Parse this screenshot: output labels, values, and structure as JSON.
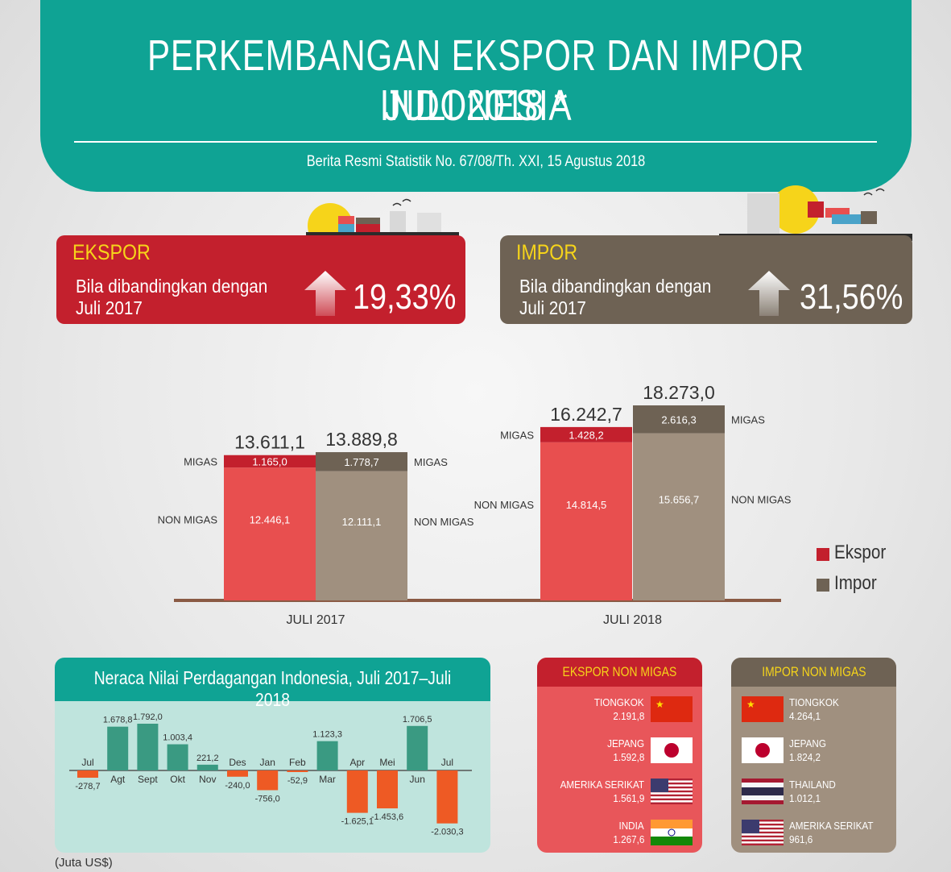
{
  "header": {
    "title_line1": "PERKEMBANGAN EKSPOR DAN IMPOR INDONESIA",
    "title_line2": "JULI 2018 *",
    "source": "Berita Resmi Statistik No. 67/08/Th. XXI, 15 Agustus 2018"
  },
  "growth": {
    "ekspor": {
      "title": "EKSPOR",
      "line1": "Bila dibandingkan dengan",
      "line2": "Juli 2017",
      "value": "19,33%"
    },
    "impor": {
      "title": "IMPOR",
      "line1": "Bila dibandingkan dengan",
      "line2": "Juli 2017",
      "value": "31,56%"
    }
  },
  "colors": {
    "teal": "#0fa394",
    "ekspor_red": "#c3202d",
    "ekspor_bar": "#e84f4f",
    "impor_brown": "#6e6254",
    "impor_bar": "#a0907f",
    "neg_orange": "#ee5a24",
    "pos_green": "#3a9a82",
    "yellow": "#f6d41a"
  },
  "chart_data": [
    {
      "type": "bar",
      "stacked": true,
      "categories": [
        "JULI 2017",
        "JULI 2018"
      ],
      "series": [
        {
          "name": "Ekspor",
          "migas": [
            1165.0,
            1428.2
          ],
          "non_migas": [
            12446.1,
            14814.5
          ],
          "total": [
            13611.1,
            16242.7
          ],
          "migas_labels": [
            "1.165,0",
            "1.428,2"
          ],
          "non_migas_labels": [
            "12.446,1",
            "14.814,5"
          ],
          "total_labels": [
            "13.611,1",
            "16.242,7"
          ]
        },
        {
          "name": "Impor",
          "migas": [
            1778.7,
            2616.3
          ],
          "non_migas": [
            12111.1,
            15656.7
          ],
          "total": [
            13889.8,
            18273.0
          ],
          "migas_labels": [
            "1.778,7",
            "2.616,3"
          ],
          "non_migas_labels": [
            "12.111,1",
            "15.656,7"
          ],
          "total_labels": [
            "13.889,8",
            "18.273,0"
          ]
        }
      ],
      "segment_labels": {
        "migas": "MIGAS",
        "non_migas": "NON MIGAS"
      },
      "legend": [
        "Ekspor",
        "Impor"
      ],
      "legend_position": "right"
    },
    {
      "type": "bar",
      "title": "Neraca Nilai Perdagangan Indonesia, Juli 2017–Juli 2018",
      "categories": [
        "Jul",
        "Agt",
        "Sept",
        "Okt",
        "Nov",
        "Des",
        "Jan",
        "Feb",
        "Mar",
        "Apr",
        "Mei",
        "Jun",
        "Jul"
      ],
      "values": [
        -278.7,
        1678.8,
        1792.0,
        1003.4,
        221.2,
        -240.0,
        -756.0,
        -52.9,
        1123.3,
        -1625.1,
        -1453.6,
        1706.5,
        -2030.3
      ],
      "value_labels": [
        "-278,7",
        "1.678,8",
        "1.792,0",
        "1.003,4",
        "221,2",
        "-240,0",
        "-756,0",
        "-52,9",
        "1.123,3",
        "-1.625,1",
        "-1.453,6",
        "1.706,5",
        "-2.030,3"
      ],
      "unit": "(Juta US$)"
    }
  ],
  "ekspor_non_migas": {
    "title": "EKSPOR NON MIGAS",
    "items": [
      {
        "country": "TIONGKOK",
        "value": "2.191,8",
        "flag": "china-flag-icon"
      },
      {
        "country": "JEPANG",
        "value": "1.592,8",
        "flag": "japan-flag-icon"
      },
      {
        "country": "AMERIKA SERIKAT",
        "value": "1.561,9",
        "flag": "usa-flag-icon"
      },
      {
        "country": "INDIA",
        "value": "1.267,6",
        "flag": "india-flag-icon"
      }
    ]
  },
  "impor_non_migas": {
    "title": "IMPOR NON MIGAS",
    "items": [
      {
        "country": "TIONGKOK",
        "value": "4.264,1",
        "flag": "china-flag-icon"
      },
      {
        "country": "JEPANG",
        "value": "1.824,2",
        "flag": "japan-flag-icon"
      },
      {
        "country": "THAILAND",
        "value": "1.012,1",
        "flag": "thailand-flag-icon"
      },
      {
        "country": "AMERIKA SERIKAT",
        "value": "961,6",
        "flag": "usa-flag-icon"
      }
    ]
  }
}
